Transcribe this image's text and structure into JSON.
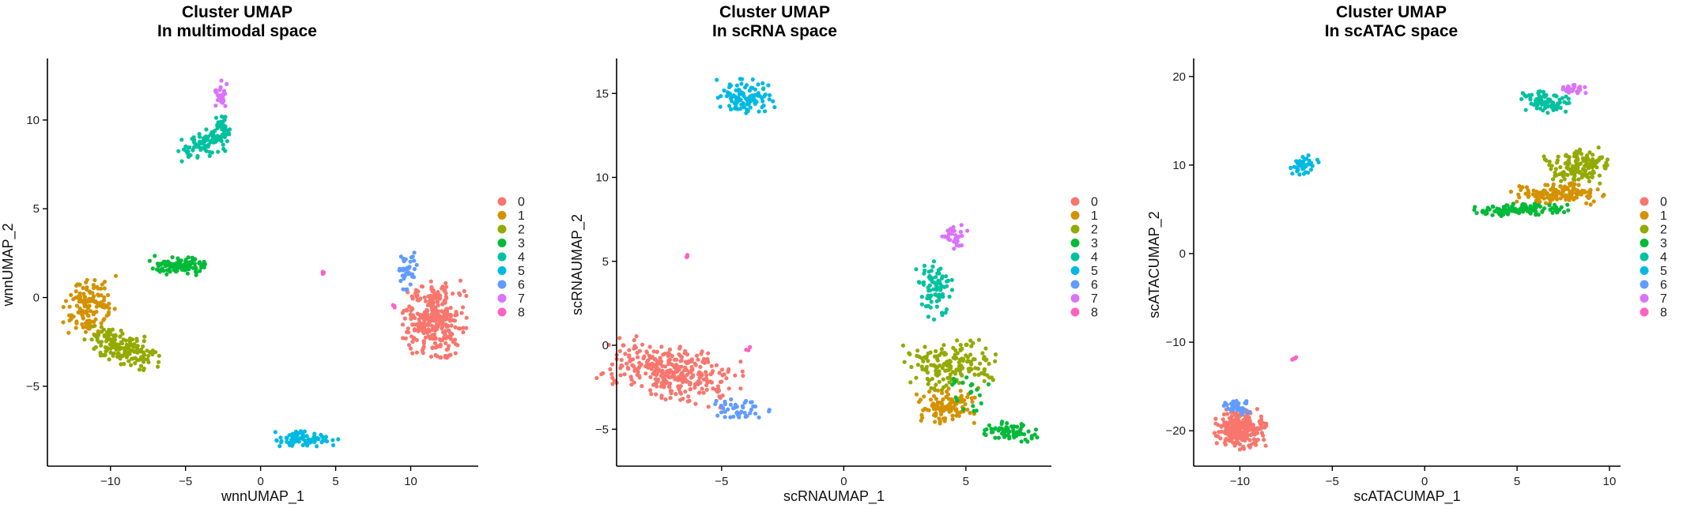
{
  "chart_data": [
    {
      "type": "scatter",
      "title": "Cluster UMAP",
      "subtitle": "In multimodal space",
      "xlabel": "wnnUMAP_1",
      "ylabel": "wnnUMAP_2",
      "xlim": [
        -14.2,
        14.5
      ],
      "ylim": [
        -9.5,
        13.2
      ],
      "xticks": [
        -10,
        -5,
        0,
        5,
        10
      ],
      "xtick_labels": [
        "−10",
        "−5",
        "0",
        "5",
        "10"
      ],
      "yticks": [
        -5,
        0,
        5,
        10
      ],
      "ytick_labels": [
        "−5",
        "0",
        "5",
        "10"
      ],
      "grid": false,
      "legend": "right",
      "clusters": [
        {
          "name": "0",
          "color": "#F8766D",
          "blobs": [
            {
              "cx": 11.6,
              "cy": -1.2,
              "sx": 1.0,
              "sy": 1.0,
              "n": 320,
              "rot": 0
            }
          ]
        },
        {
          "name": "1",
          "color": "#D39200",
          "blobs": [
            {
              "cx": -11.4,
              "cy": -0.6,
              "sx": 0.8,
              "sy": 0.85,
              "n": 150,
              "rot": 0
            }
          ]
        },
        {
          "name": "2",
          "color": "#93AA00",
          "blobs": [
            {
              "cx": -9.2,
              "cy": -2.8,
              "sx": 1.2,
              "sy": 0.45,
              "n": 170,
              "rot": -0.25
            }
          ]
        },
        {
          "name": "3",
          "color": "#00BA38",
          "blobs": [
            {
              "cx": -5.3,
              "cy": 1.8,
              "sx": 1.0,
              "sy": 0.25,
              "n": 110,
              "rot": 0
            }
          ]
        },
        {
          "name": "4",
          "color": "#00C19F",
          "blobs": [
            {
              "cx": -3.6,
              "cy": 8.7,
              "sx": 0.9,
              "sy": 0.4,
              "n": 90,
              "rot": 0.3
            },
            {
              "cx": -2.6,
              "cy": 9.6,
              "sx": 0.25,
              "sy": 0.4,
              "n": 25,
              "rot": 0
            }
          ]
        },
        {
          "name": "5",
          "color": "#00B9E3",
          "blobs": [
            {
              "cx": 3.0,
              "cy": -8.0,
              "sx": 1.0,
              "sy": 0.22,
              "n": 90,
              "rot": 0
            }
          ]
        },
        {
          "name": "6",
          "color": "#619CFF",
          "blobs": [
            {
              "cx": 9.8,
              "cy": 1.4,
              "sx": 0.3,
              "sy": 0.55,
              "n": 40,
              "rot": 0
            }
          ]
        },
        {
          "name": "7",
          "color": "#DB72FB",
          "blobs": [
            {
              "cx": -2.6,
              "cy": 11.5,
              "sx": 0.2,
              "sy": 0.35,
              "n": 28,
              "rot": 0
            }
          ]
        },
        {
          "name": "8",
          "color": "#FF61C3",
          "blobs": [
            {
              "cx": 4.2,
              "cy": 1.45,
              "sx": 0.08,
              "sy": 0.08,
              "n": 5,
              "rot": 0
            },
            {
              "cx": 8.9,
              "cy": -0.5,
              "sx": 0.08,
              "sy": 0.05,
              "n": 3,
              "rot": 0
            }
          ]
        }
      ]
    },
    {
      "type": "scatter",
      "title": "Cluster UMAP",
      "subtitle": "In scRNA space",
      "xlabel": "scRNAUMAP_1",
      "ylabel": "scRNAUMAP_2",
      "xlim": [
        -9.3,
        8.5
      ],
      "ylim": [
        -7.2,
        16.8
      ],
      "xticks": [
        -5,
        0,
        5
      ],
      "xtick_labels": [
        "−5",
        "0",
        "5"
      ],
      "yticks": [
        -5,
        0,
        5,
        10,
        15
      ],
      "ytick_labels": [
        "−5",
        "0",
        "5",
        "10",
        "15"
      ],
      "grid": false,
      "legend": "right",
      "clusters": [
        {
          "name": "0",
          "color": "#F8766D",
          "blobs": [
            {
              "cx": -7.0,
              "cy": -1.6,
              "sx": 1.4,
              "sy": 0.75,
              "n": 340,
              "rot": -0.3
            }
          ]
        },
        {
          "name": "1",
          "color": "#D39200",
          "blobs": [
            {
              "cx": 4.2,
              "cy": -3.6,
              "sx": 0.6,
              "sy": 0.5,
              "n": 110,
              "rot": 0
            }
          ]
        },
        {
          "name": "2",
          "color": "#93AA00",
          "blobs": [
            {
              "cx": 4.4,
              "cy": -1.2,
              "sx": 0.9,
              "sy": 0.7,
              "n": 170,
              "rot": 0
            }
          ]
        },
        {
          "name": "3",
          "color": "#00BA38",
          "blobs": [
            {
              "cx": 6.8,
              "cy": -5.2,
              "sx": 0.55,
              "sy": 0.3,
              "n": 70,
              "rot": 0
            },
            {
              "cx": 5.2,
              "cy": -3.0,
              "sx": 0.5,
              "sy": 0.8,
              "n": 20,
              "rot": 0
            }
          ]
        },
        {
          "name": "4",
          "color": "#00C19F",
          "blobs": [
            {
              "cx": 3.7,
              "cy": 3.2,
              "sx": 0.35,
              "sy": 0.9,
              "n": 80,
              "rot": 0
            }
          ]
        },
        {
          "name": "5",
          "color": "#00B9E3",
          "blobs": [
            {
              "cx": -4.0,
              "cy": 14.8,
              "sx": 0.55,
              "sy": 0.5,
              "n": 110,
              "rot": 0
            }
          ]
        },
        {
          "name": "6",
          "color": "#619CFF",
          "blobs": [
            {
              "cx": -4.2,
              "cy": -3.9,
              "sx": 0.6,
              "sy": 0.3,
              "n": 45,
              "rot": -0.3
            }
          ]
        },
        {
          "name": "7",
          "color": "#DB72FB",
          "blobs": [
            {
              "cx": 4.5,
              "cy": 6.5,
              "sx": 0.3,
              "sy": 0.35,
              "n": 32,
              "rot": 0
            }
          ]
        },
        {
          "name": "8",
          "color": "#FF61C3",
          "blobs": [
            {
              "cx": -6.4,
              "cy": 5.3,
              "sx": 0.06,
              "sy": 0.06,
              "n": 4,
              "rot": 0
            },
            {
              "cx": -3.9,
              "cy": -0.2,
              "sx": 0.06,
              "sy": 0.06,
              "n": 3,
              "rot": 0
            }
          ]
        }
      ]
    },
    {
      "type": "scatter",
      "title": "Cluster UMAP",
      "subtitle": "In scATAC space",
      "xlabel": "scATACUMAP_1",
      "ylabel": "scATACUMAP_2",
      "xlim": [
        -12.5,
        10.6
      ],
      "ylim": [
        -24,
        21.5
      ],
      "xticks": [
        -10,
        -5,
        0,
        5,
        10
      ],
      "xtick_labels": [
        "−10",
        "−5",
        "0",
        "5",
        "10"
      ],
      "yticks": [
        -20,
        -10,
        0,
        10,
        20
      ],
      "ytick_labels": [
        "−20",
        "−10",
        "0",
        "10",
        "20"
      ],
      "grid": false,
      "legend": "right",
      "clusters": [
        {
          "name": "0",
          "color": "#F8766D",
          "blobs": [
            {
              "cx": -10.0,
              "cy": -19.8,
              "sx": 0.65,
              "sy": 1.1,
              "n": 260,
              "rot": 0
            }
          ]
        },
        {
          "name": "1",
          "color": "#D39200",
          "blobs": [
            {
              "cx": 7.3,
              "cy": 6.8,
              "sx": 1.2,
              "sy": 0.6,
              "n": 140,
              "rot": 0
            }
          ]
        },
        {
          "name": "2",
          "color": "#93AA00",
          "blobs": [
            {
              "cx": 8.2,
              "cy": 9.8,
              "sx": 0.8,
              "sy": 1.0,
              "n": 150,
              "rot": 0
            }
          ]
        },
        {
          "name": "3",
          "color": "#00BA38",
          "blobs": [
            {
              "cx": 5.3,
              "cy": 5.0,
              "sx": 1.2,
              "sy": 0.35,
              "n": 110,
              "rot": 0
            }
          ]
        },
        {
          "name": "4",
          "color": "#00C19F",
          "blobs": [
            {
              "cx": 6.5,
              "cy": 17.2,
              "sx": 0.6,
              "sy": 0.6,
              "n": 80,
              "rot": 0
            }
          ]
        },
        {
          "name": "5",
          "color": "#00B9E3",
          "blobs": [
            {
              "cx": -6.5,
              "cy": 10.0,
              "sx": 0.35,
              "sy": 0.6,
              "n": 40,
              "rot": -0.5
            }
          ]
        },
        {
          "name": "6",
          "color": "#619CFF",
          "blobs": [
            {
              "cx": -10.1,
              "cy": -17.4,
              "sx": 0.4,
              "sy": 0.4,
              "n": 40,
              "rot": 0
            }
          ]
        },
        {
          "name": "7",
          "color": "#DB72FB",
          "blobs": [
            {
              "cx": 8.0,
              "cy": 18.6,
              "sx": 0.45,
              "sy": 0.3,
              "n": 32,
              "rot": 0
            }
          ]
        },
        {
          "name": "8",
          "color": "#FF61C3",
          "blobs": [
            {
              "cx": -7.0,
              "cy": -11.8,
              "sx": 0.08,
              "sy": 0.1,
              "n": 4,
              "rot": 0
            }
          ]
        }
      ]
    }
  ]
}
